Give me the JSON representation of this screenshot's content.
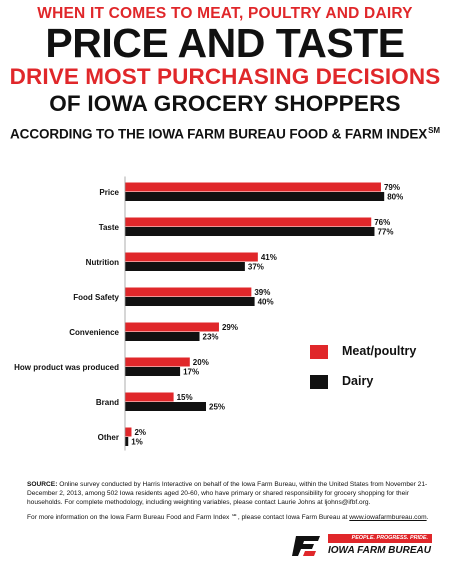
{
  "header": {
    "line1": "WHEN IT COMES TO MEAT, POULTRY AND DAIRY",
    "line2": "PRICE AND TASTE",
    "line3": "DRIVE MOST PURCHASING DECISIONS",
    "line4": "OF IOWA GROCERY SHOPPERS",
    "line5": "ACCORDING TO THE IOWA FARM BUREAU FOOD & FARM INDEX",
    "line5_mark": "SM"
  },
  "chart_data": {
    "type": "bar",
    "orientation": "horizontal",
    "categories": [
      "Price",
      "Taste",
      "Nutrition",
      "Food Safety",
      "Convenience",
      "How product was produced",
      "Brand",
      "Other"
    ],
    "series": [
      {
        "name": "Meat/poultry",
        "values": [
          79,
          76,
          41,
          39,
          29,
          20,
          15,
          2
        ],
        "labels": [
          "79%",
          "76%",
          "41%",
          "39%",
          "29%",
          "20%",
          "15%",
          "2%"
        ],
        "color": "#e0272a"
      },
      {
        "name": "Dairy",
        "values": [
          80,
          77,
          37,
          40,
          23,
          17,
          25,
          1
        ],
        "labels": [
          "80%",
          "77%",
          "37%",
          "40%",
          "23%",
          "17%",
          "25%",
          "1%"
        ],
        "color": "#111111"
      }
    ],
    "xlim": [
      0,
      100
    ],
    "legend_position": "right",
    "grid": false
  },
  "footer": {
    "source_label": "SOURCE:",
    "source_text": "Online survey conducted by Harris Interactive on behalf of the Iowa Farm Bureau, within the United States from November 21-December 2, 2013, among 502 Iowa residents aged 20-60, who have primary or shared responsibility for grocery shopping for their households. For complete methodology, including weighting variables, please contact Laurie Johns at ljohns@ifbf.org.",
    "more_text": "For more information on the Iowa Farm Bureau Food and Farm Index ℠, please contact Iowa Farm Bureau at",
    "more_link": "www.iowafarmbureau.com",
    "more_end": "."
  },
  "logo": {
    "tagline": "PEOPLE. PROGRESS. PRIDE.",
    "name": "IOWA FARM BUREAU",
    "mark": "FB"
  }
}
